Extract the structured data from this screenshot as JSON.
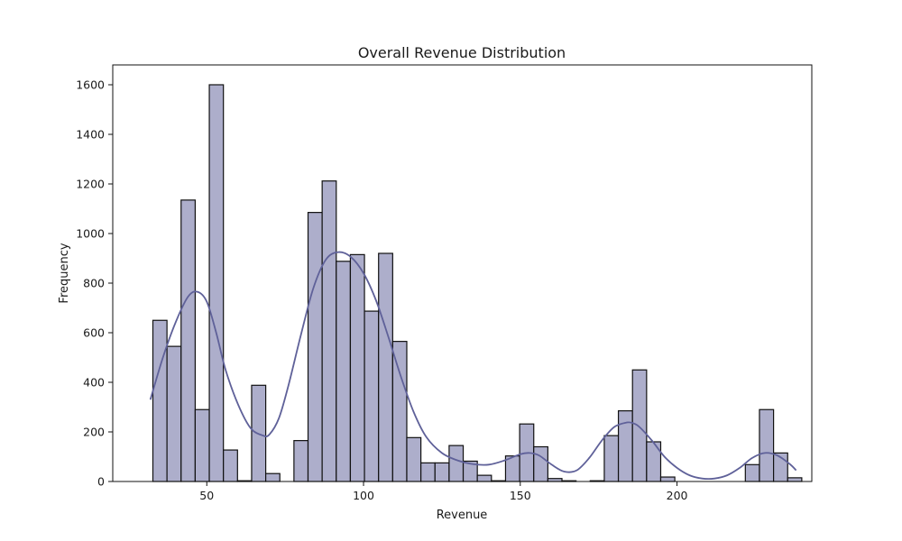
{
  "chart_data": {
    "type": "bar",
    "title": "Overall Revenue Distribution",
    "xlabel": "Revenue",
    "ylabel": "Frequency",
    "xlim": [
      20,
      243
    ],
    "ylim": [
      0,
      1680
    ],
    "xticks": [
      50,
      100,
      150,
      200
    ],
    "yticks": [
      0,
      200,
      400,
      600,
      800,
      1000,
      1200,
      1400,
      1600
    ],
    "bin_start": 32.8,
    "bin_width": 4.5,
    "bin_counts": [
      650,
      545,
      1135,
      290,
      1600,
      127,
      3,
      388,
      32,
      0,
      165,
      1085,
      1212,
      888,
      915,
      687,
      920,
      565,
      177,
      75,
      75,
      145,
      82,
      25,
      3,
      103,
      232,
      140,
      12,
      3,
      0,
      3,
      185,
      285,
      450,
      160,
      18,
      0,
      0,
      0,
      0,
      0,
      68,
      290,
      115,
      15
    ],
    "kde": {
      "x": [
        32,
        36,
        40,
        44,
        47,
        50,
        53,
        56,
        60,
        64,
        68,
        70,
        73,
        76,
        80,
        84,
        88,
        92,
        96,
        100,
        104,
        108,
        112,
        116,
        120,
        125,
        130,
        135,
        140,
        145,
        150,
        153,
        156,
        160,
        164,
        168,
        172,
        176,
        180,
        184,
        186,
        188,
        192,
        196,
        200,
        204,
        208,
        212,
        216,
        220,
        224,
        228,
        232,
        236,
        238
      ],
      "y": [
        330,
        500,
        640,
        745,
        765,
        725,
        600,
        450,
        310,
        215,
        185,
        190,
        255,
        385,
        590,
        780,
        895,
        925,
        905,
        840,
        730,
        580,
        420,
        280,
        180,
        115,
        85,
        70,
        68,
        85,
        110,
        115,
        105,
        68,
        40,
        45,
        95,
        165,
        220,
        238,
        235,
        220,
        165,
        100,
        55,
        25,
        12,
        12,
        25,
        55,
        95,
        115,
        105,
        70,
        45
      ]
    }
  }
}
